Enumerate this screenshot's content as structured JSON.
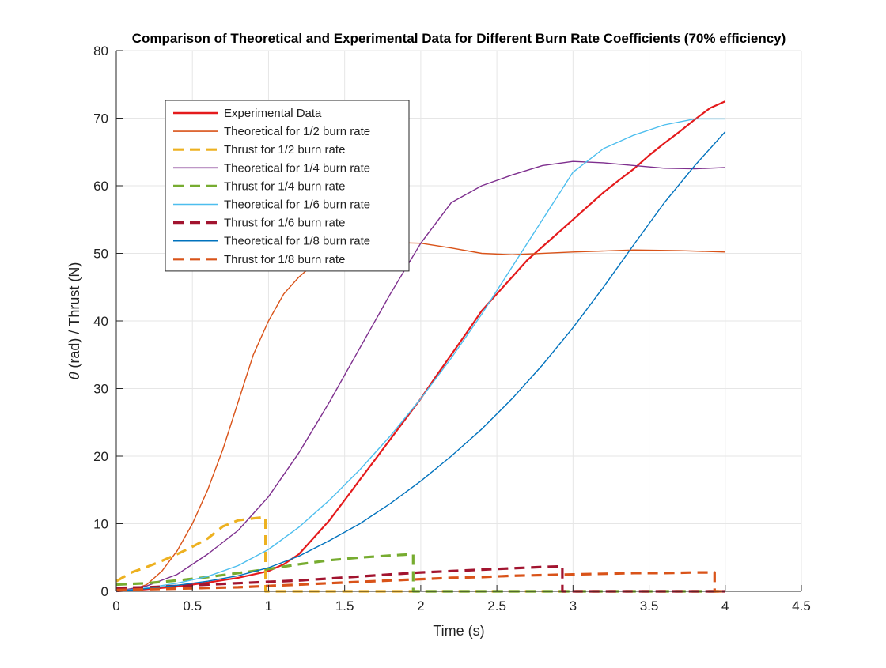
{
  "chart_data": {
    "type": "line",
    "title": "Comparison of Theoretical and Experimental Data for Different Burn Rate Coefficients (70% efficiency)",
    "xlabel": "Time (s)",
    "ylabel_symbol": "θ",
    "ylabel_rest": " (rad) / Thrust (N)",
    "xlim": [
      0,
      4.5
    ],
    "ylim": [
      0,
      80
    ],
    "x_ticks": [
      0,
      0.5,
      1,
      1.5,
      2,
      2.5,
      3,
      3.5,
      4,
      4.5
    ],
    "x_tick_labels": [
      "0",
      "0.5",
      "1",
      "1.5",
      "2",
      "2.5",
      "3",
      "3.5",
      "4",
      "4.5"
    ],
    "y_ticks": [
      0,
      10,
      20,
      30,
      40,
      50,
      60,
      70,
      80
    ],
    "y_tick_labels": [
      "0",
      "10",
      "20",
      "30",
      "40",
      "50",
      "60",
      "70",
      "80"
    ],
    "grid": true,
    "legend_position": "upper-left",
    "series": [
      {
        "name": "Experimental Data",
        "color": "#e41a1c",
        "style": "solid",
        "width": 2.2,
        "x": [
          0,
          0.2,
          0.4,
          0.6,
          0.8,
          1.0,
          1.1,
          1.2,
          1.3,
          1.4,
          1.5,
          1.6,
          1.7,
          1.8,
          1.9,
          2.0,
          2.1,
          2.2,
          2.3,
          2.4,
          2.5,
          2.6,
          2.7,
          2.8,
          2.9,
          3.0,
          3.1,
          3.2,
          3.3,
          3.4,
          3.5,
          3.6,
          3.7,
          3.8,
          3.9,
          4.0
        ],
        "y": [
          0,
          0.3,
          0.7,
          1.3,
          2.0,
          3.0,
          4.0,
          5.5,
          8.0,
          10.5,
          13.5,
          16.5,
          19.5,
          22.5,
          25.5,
          28.5,
          31.8,
          35.0,
          38.2,
          41.5,
          44.0,
          46.5,
          49.0,
          51.0,
          53.0,
          55.0,
          57.0,
          59.0,
          60.8,
          62.5,
          64.5,
          66.3,
          68.0,
          69.8,
          71.5,
          72.5
        ]
      },
      {
        "name": "Theoretical for 1/2 burn rate",
        "color": "#d95319",
        "style": "solid",
        "width": 1.4,
        "x": [
          0,
          0.1,
          0.2,
          0.3,
          0.4,
          0.5,
          0.6,
          0.7,
          0.8,
          0.9,
          1.0,
          1.1,
          1.2,
          1.3,
          1.4,
          1.6,
          1.8,
          2.0,
          2.2,
          2.4,
          2.6,
          3.0,
          3.4,
          3.7,
          4.0
        ],
        "y": [
          0,
          0.2,
          1.0,
          3.0,
          6.0,
          10.0,
          15.0,
          21.0,
          28.0,
          35.0,
          40.0,
          44.0,
          46.5,
          48.5,
          50.0,
          51.2,
          51.6,
          51.5,
          50.8,
          50.0,
          49.8,
          50.2,
          50.5,
          50.4,
          50.2
        ]
      },
      {
        "name": "Thrust for 1/2 burn rate",
        "color": "#edb120",
        "style": "dashed",
        "width": 3.2,
        "x": [
          0,
          0.1,
          0.2,
          0.3,
          0.4,
          0.5,
          0.6,
          0.7,
          0.8,
          0.9,
          0.98,
          0.98,
          1.5,
          2.0,
          2.5,
          3.0,
          3.5,
          4.0
        ],
        "y": [
          1.5,
          2.8,
          3.6,
          4.5,
          5.5,
          6.6,
          7.8,
          9.6,
          10.5,
          10.8,
          11.0,
          0,
          0,
          0,
          0,
          0,
          0,
          0
        ]
      },
      {
        "name": "Theoretical for 1/4 burn rate",
        "color": "#7e2f8e",
        "style": "solid",
        "width": 1.4,
        "x": [
          0,
          0.2,
          0.4,
          0.6,
          0.8,
          1.0,
          1.2,
          1.4,
          1.6,
          1.8,
          2.0,
          2.2,
          2.4,
          2.6,
          2.8,
          3.0,
          3.2,
          3.4,
          3.6,
          3.8,
          4.0
        ],
        "y": [
          0,
          0.8,
          2.5,
          5.5,
          9.0,
          14.0,
          20.5,
          28.0,
          36.0,
          44.0,
          51.5,
          57.5,
          60.0,
          61.6,
          63.0,
          63.6,
          63.4,
          63.0,
          62.6,
          62.5,
          62.7
        ]
      },
      {
        "name": "Thrust for 1/4 burn rate",
        "color": "#77ac30",
        "style": "dashed",
        "width": 3.2,
        "x": [
          0,
          0.2,
          0.4,
          0.6,
          0.8,
          1.0,
          1.2,
          1.4,
          1.6,
          1.8,
          1.95,
          1.95,
          2.5,
          3.0,
          3.5,
          4.0
        ],
        "y": [
          1.0,
          1.2,
          1.6,
          2.1,
          2.7,
          3.3,
          4.0,
          4.6,
          5.0,
          5.3,
          5.5,
          0,
          0,
          0,
          0,
          0
        ]
      },
      {
        "name": "Theoretical for 1/6 burn rate",
        "color": "#4dbeee",
        "style": "solid",
        "width": 1.4,
        "x": [
          0,
          0.2,
          0.4,
          0.6,
          0.8,
          1.0,
          1.2,
          1.4,
          1.6,
          1.8,
          2.0,
          2.2,
          2.4,
          2.6,
          2.8,
          3.0,
          3.2,
          3.4,
          3.6,
          3.8,
          4.0
        ],
        "y": [
          0,
          0.5,
          1.2,
          2.2,
          3.8,
          6.2,
          9.5,
          13.5,
          18.0,
          23.0,
          28.5,
          34.5,
          41.0,
          48.0,
          55.0,
          62.0,
          65.5,
          67.5,
          69.0,
          69.9,
          69.9
        ]
      },
      {
        "name": "Thrust for 1/6 burn rate",
        "color": "#a2142f",
        "style": "dashed",
        "width": 3.2,
        "x": [
          0,
          0.2,
          0.4,
          0.6,
          0.8,
          1.0,
          1.2,
          1.4,
          1.6,
          1.8,
          2.0,
          2.2,
          2.4,
          2.6,
          2.8,
          2.93,
          2.93,
          3.5,
          4.0
        ],
        "y": [
          0.5,
          0.6,
          0.8,
          1.0,
          1.2,
          1.4,
          1.6,
          1.9,
          2.2,
          2.5,
          2.8,
          3.0,
          3.2,
          3.4,
          3.6,
          3.7,
          0,
          0,
          0
        ]
      },
      {
        "name": "Theoretical for 1/8 burn rate",
        "color": "#0072bd",
        "style": "solid",
        "width": 1.4,
        "x": [
          0,
          0.2,
          0.4,
          0.6,
          0.8,
          1.0,
          1.2,
          1.4,
          1.6,
          1.8,
          2.0,
          2.2,
          2.4,
          2.6,
          2.8,
          3.0,
          3.2,
          3.4,
          3.6,
          3.8,
          4.0
        ],
        "y": [
          0,
          0.4,
          0.9,
          1.5,
          2.3,
          3.5,
          5.2,
          7.5,
          10.0,
          13.0,
          16.3,
          20.0,
          24.0,
          28.5,
          33.5,
          39.0,
          45.0,
          51.3,
          57.5,
          63.0,
          68.0
        ]
      },
      {
        "name": "Thrust for 1/8 burn rate",
        "color": "#d95319",
        "style": "dashed",
        "width": 3.2,
        "x": [
          0,
          0.2,
          0.4,
          0.6,
          0.8,
          1.0,
          1.2,
          1.4,
          1.6,
          1.8,
          2.0,
          2.2,
          2.4,
          2.6,
          2.8,
          3.0,
          3.2,
          3.4,
          3.6,
          3.8,
          3.93,
          3.93,
          4.0
        ],
        "y": [
          0.2,
          0.3,
          0.4,
          0.5,
          0.6,
          0.8,
          1.0,
          1.2,
          1.4,
          1.6,
          1.8,
          2.0,
          2.1,
          2.3,
          2.4,
          2.5,
          2.6,
          2.7,
          2.7,
          2.8,
          2.8,
          0,
          0
        ]
      }
    ]
  }
}
